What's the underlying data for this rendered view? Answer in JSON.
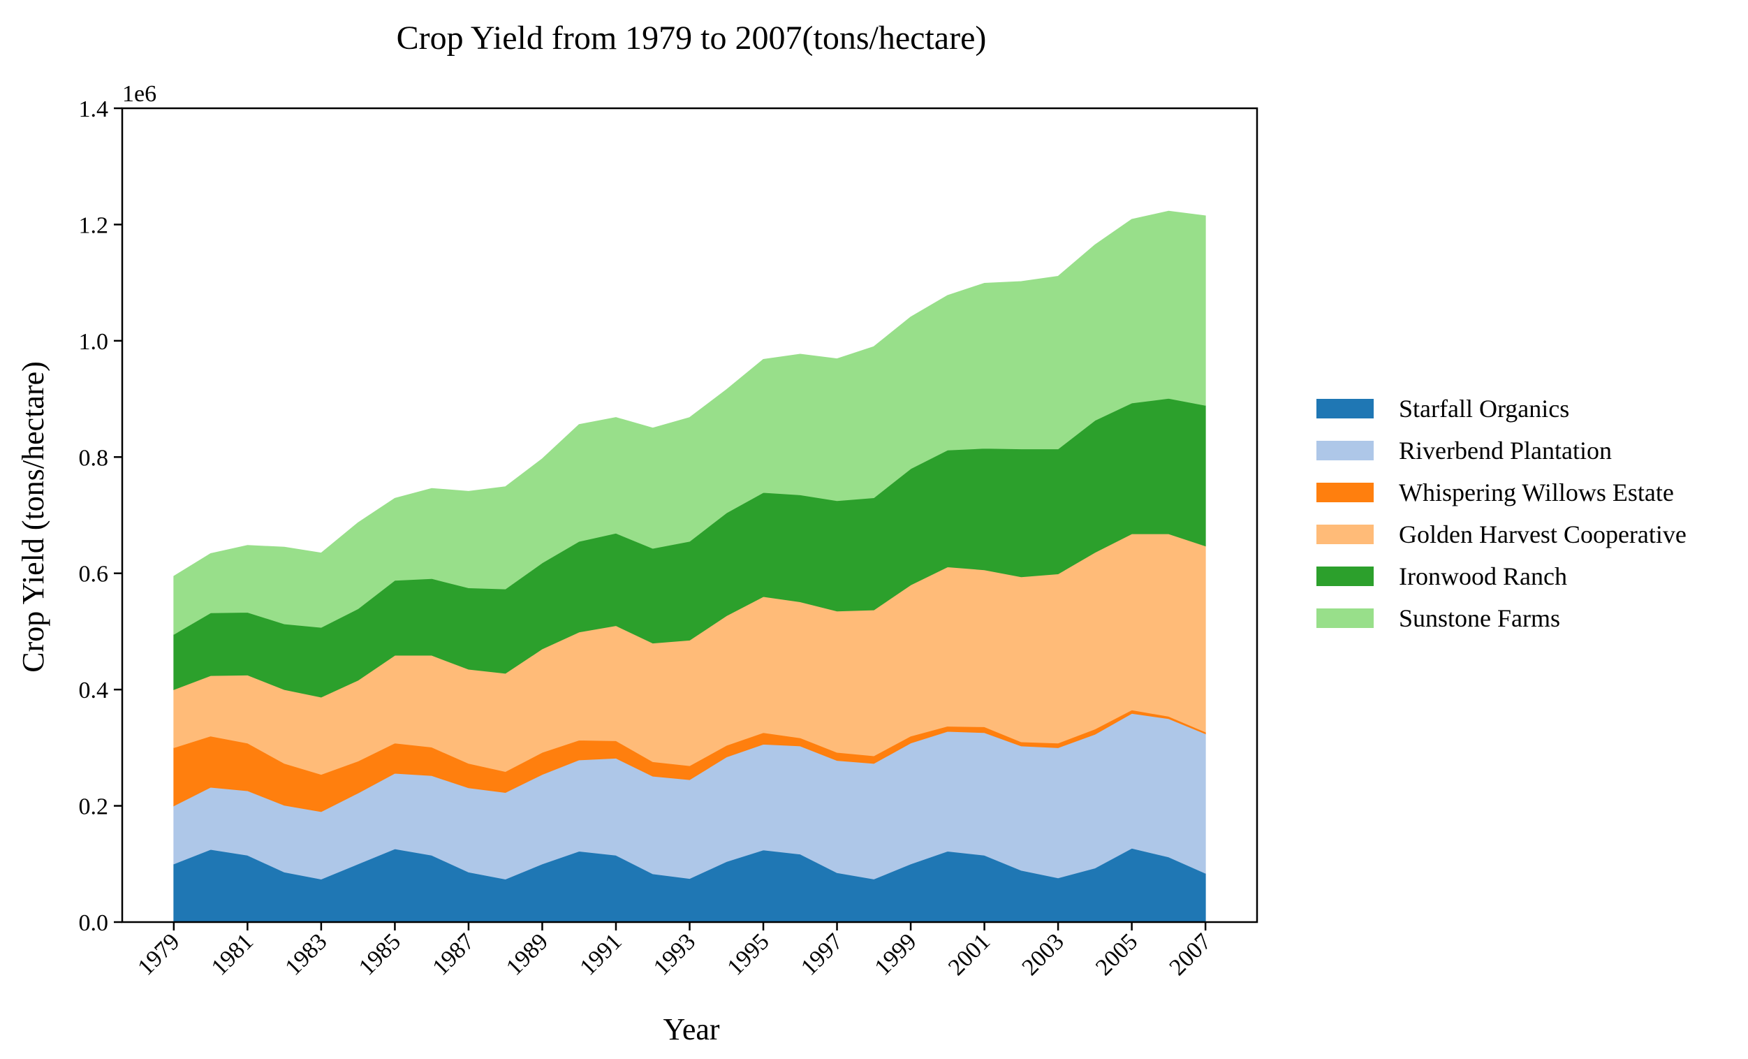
{
  "chart_data": {
    "type": "area",
    "stacked": true,
    "title": "Crop Yield from 1979 to 2007(tons/hectare)",
    "xlabel": "Year",
    "ylabel": "Crop Yield (tons/hectare)",
    "y_offset_label": "1e6",
    "ylim": [
      0,
      1400000
    ],
    "yticks": [
      0,
      200000,
      400000,
      600000,
      800000,
      1000000,
      1200000,
      1400000
    ],
    "ytick_labels": [
      "0.0",
      "0.2",
      "0.4",
      "0.6",
      "0.8",
      "1.0",
      "1.2",
      "1.4"
    ],
    "xlim": [
      1977.6,
      2008.4
    ],
    "xticks": [
      1979,
      1981,
      1983,
      1985,
      1987,
      1989,
      1991,
      1993,
      1995,
      1997,
      1999,
      2001,
      2003,
      2005,
      2007
    ],
    "xtick_labels": [
      "1979",
      "1981",
      "1983",
      "1985",
      "1987",
      "1989",
      "1991",
      "1993",
      "1995",
      "1997",
      "1999",
      "2001",
      "2003",
      "2005",
      "2007"
    ],
    "x": [
      1979,
      1980,
      1981,
      1982,
      1983,
      1984,
      1985,
      1986,
      1987,
      1988,
      1989,
      1990,
      1991,
      1992,
      1993,
      1994,
      1995,
      1996,
      1997,
      1998,
      1999,
      2000,
      2001,
      2002,
      2003,
      2004,
      2005,
      2006,
      2007
    ],
    "legend_position": "center-right outside",
    "series": [
      {
        "name": "Starfall Organics",
        "color": "#1f77b4",
        "values": [
          100000,
          125000,
          115000,
          86000,
          74000,
          100000,
          126000,
          115000,
          86000,
          74000,
          100000,
          122000,
          115000,
          83000,
          75000,
          104000,
          124000,
          117000,
          85000,
          74000,
          100000,
          122000,
          115000,
          89000,
          76000,
          93000,
          127000,
          112000,
          84000
        ]
      },
      {
        "name": "Riverbend Plantation",
        "color": "#aec7e8",
        "values": [
          100000,
          107000,
          111000,
          115000,
          116000,
          122000,
          130000,
          137000,
          145000,
          149000,
          154000,
          157000,
          167000,
          168000,
          170000,
          180000,
          182000,
          186000,
          193000,
          199000,
          208000,
          206000,
          211000,
          214000,
          224000,
          230000,
          232000,
          238000,
          240000
        ]
      },
      {
        "name": "Whispering Willows Estate",
        "color": "#ff7f0e",
        "values": [
          100000,
          88000,
          82000,
          72000,
          64000,
          55000,
          52000,
          49000,
          42000,
          36000,
          38000,
          34000,
          30000,
          25000,
          24000,
          20000,
          20000,
          14000,
          14000,
          13000,
          12000,
          9000,
          10000,
          7000,
          8000,
          9000,
          6000,
          4000,
          3000
        ]
      },
      {
        "name": "Golden Harvest Cooperative",
        "color": "#ffbb78",
        "values": [
          100000,
          104000,
          117000,
          127000,
          133000,
          139000,
          151000,
          158000,
          162000,
          169000,
          178000,
          186000,
          198000,
          204000,
          216000,
          223000,
          234000,
          234000,
          243000,
          251000,
          260000,
          274000,
          270000,
          284000,
          291000,
          304000,
          303000,
          314000,
          320000
        ]
      },
      {
        "name": "Ironwood Ranch",
        "color": "#2ca02c",
        "values": [
          95000,
          108000,
          108000,
          113000,
          120000,
          123000,
          129000,
          132000,
          140000,
          145000,
          148000,
          156000,
          159000,
          163000,
          170000,
          177000,
          179000,
          184000,
          190000,
          193000,
          200000,
          201000,
          209000,
          220000,
          215000,
          227000,
          225000,
          233000,
          242000
        ]
      },
      {
        "name": "Sunstone Farms",
        "color": "#98df8a",
        "values": [
          100000,
          102000,
          115000,
          132000,
          128000,
          148000,
          141000,
          155000,
          166000,
          176000,
          179000,
          201000,
          199000,
          207000,
          213000,
          212000,
          229000,
          242000,
          244000,
          260000,
          261000,
          266000,
          284000,
          288000,
          297000,
          302000,
          316000,
          322000,
          326000
        ]
      }
    ]
  }
}
